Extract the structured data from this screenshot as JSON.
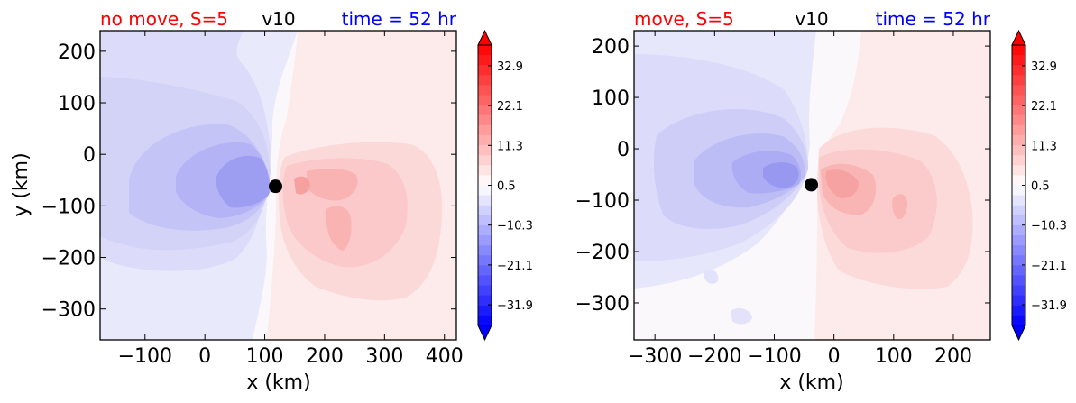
{
  "figure": {
    "panels": [
      {
        "title_left": "no move, S=5",
        "title_center": "v10",
        "title_right": "time = 52 hr",
        "xlabel": "x (km)",
        "ylabel": "y (km)"
      },
      {
        "title_left": "move, S=5",
        "title_center": "v10",
        "title_right": "time = 52 hr",
        "xlabel": "x (km)",
        "ylabel": ""
      }
    ],
    "colors": {
      "title_left": "#ff0000",
      "title_center": "#000000",
      "title_right": "#0000ff",
      "colormap": "bwr"
    }
  },
  "chart_data": [
    {
      "type": "heatmap",
      "variable": "v10",
      "xlim": [
        -175,
        420
      ],
      "ylim": [
        -360,
        240
      ],
      "xticks": [
        -100,
        0,
        100,
        200,
        300,
        400
      ],
      "yticks": [
        200,
        100,
        0,
        -100,
        -200,
        -300
      ],
      "center_marker": {
        "x": 118,
        "y": -62
      },
      "colorbar": {
        "min": -37.5,
        "max": 38.5,
        "tick_values": [
          32.9,
          22.1,
          11.3,
          0.5,
          -10.3,
          -21.1,
          -31.9
        ],
        "tick_labels": [
          "32.9",
          "22.1",
          "11.3",
          "0.5",
          "−10.3",
          "−21.1",
          "−31.9"
        ],
        "extend": "both"
      }
    },
    {
      "type": "heatmap",
      "variable": "v10",
      "xlim": [
        -335,
        262
      ],
      "ylim": [
        -372,
        230
      ],
      "xticks": [
        -300,
        -200,
        -100,
        0,
        100,
        200
      ],
      "yticks": [
        200,
        100,
        0,
        -100,
        -200,
        -300
      ],
      "center_marker": {
        "x": -38,
        "y": -70
      },
      "colorbar": {
        "min": -37.5,
        "max": 38.5,
        "tick_values": [
          32.9,
          22.1,
          11.3,
          0.5,
          -10.3,
          -21.1,
          -31.9
        ],
        "tick_labels": [
          "32.9",
          "22.1",
          "11.3",
          "0.5",
          "−10.3",
          "−21.1",
          "−31.9"
        ],
        "extend": "both"
      }
    }
  ]
}
